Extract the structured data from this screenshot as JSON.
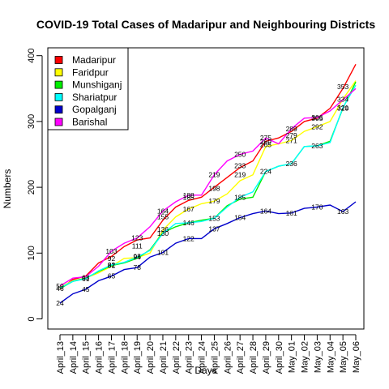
{
  "chart_data": {
    "type": "line",
    "title": "COVID-19 Total Cases of Madaripur and Neighbouring Districts",
    "xlabel": "Days",
    "ylabel": "Numbers",
    "ylim": [
      0,
      400
    ],
    "yticks": [
      0,
      100,
      200,
      300,
      400
    ],
    "grid": false,
    "legend_position": "top-left",
    "categories": [
      "April_13",
      "April_14",
      "April_15",
      "April_16",
      "April_17",
      "April_18",
      "April_19",
      "April_20",
      "April_21",
      "April_22",
      "April_23",
      "April_24",
      "April_25",
      "April_26",
      "April_27",
      "April_28",
      "April_29",
      "April_30",
      "May_01",
      "May_02",
      "May_03",
      "May_04",
      "May_05",
      "May_06"
    ],
    "series": [
      {
        "name": "Madaripur",
        "color": "#ff0000",
        "values": [
          45,
          60,
          65,
          85,
          95,
          110,
          120,
          123,
          150,
          170,
          180,
          185,
          200,
          215,
          230,
          240,
          270,
          275,
          285,
          300,
          305,
          320,
          350,
          387
        ]
      },
      {
        "name": "Faridpur",
        "color": "#ffff00",
        "values": [
          48,
          58,
          62,
          70,
          80,
          92,
          93,
          100,
          135,
          155,
          167,
          175,
          179,
          190,
          210,
          219,
          262,
          266,
          271,
          285,
          292,
          300,
          334,
          362
        ]
      },
      {
        "name": "Munshiganj",
        "color": "#00ee00",
        "values": [
          46,
          57,
          62,
          72,
          81,
          85,
          92,
          105,
          131,
          140,
          146,
          150,
          153,
          172,
          182,
          185,
          224,
          232,
          236,
          262,
          263,
          270,
          320,
          360
        ]
      },
      {
        "name": "Shariatpur",
        "color": "#00ffff",
        "values": [
          47,
          57,
          61,
          73,
          82,
          86,
          94,
          104,
          130,
          145,
          146,
          148,
          153,
          170,
          185,
          193,
          224,
          232,
          236,
          262,
          263,
          268,
          321,
          355
        ]
      },
      {
        "name": "Gopalganj",
        "color": "#0000cc",
        "values": [
          24,
          38,
          45,
          58,
          65,
          75,
          78,
          94,
          101,
          115,
          122,
          122,
          137,
          145,
          154,
          160,
          164,
          160,
          161,
          168,
          170,
          173,
          163,
          178
        ]
      },
      {
        "name": "Barishal",
        "color": "#ff00ff",
        "values": [
          50,
          62,
          64,
          80,
          103,
          115,
          123,
          140,
          164,
          178,
          188,
          188,
          219,
          240,
          250,
          255,
          275,
          266,
          289,
          305,
          306,
          316,
          333,
          350
        ]
      }
    ],
    "annotations": [
      {
        "x": "April_13",
        "y": 50,
        "text": "50"
      },
      {
        "x": "April_13",
        "y": 46,
        "text": "46"
      },
      {
        "x": "April_13",
        "y": 24,
        "text": "24"
      },
      {
        "x": "April_15",
        "y": 63,
        "text": "63"
      },
      {
        "x": "April_15",
        "y": 61,
        "text": "61"
      },
      {
        "x": "April_15",
        "y": 45,
        "text": "45"
      },
      {
        "x": "April_17",
        "y": 103,
        "text": "103"
      },
      {
        "x": "April_17",
        "y": 92,
        "text": "92"
      },
      {
        "x": "April_17",
        "y": 82,
        "text": "82"
      },
      {
        "x": "April_17",
        "y": 81,
        "text": "81"
      },
      {
        "x": "April_17",
        "y": 65,
        "text": "65"
      },
      {
        "x": "April_19",
        "y": 123,
        "text": "123"
      },
      {
        "x": "April_19",
        "y": 111,
        "text": "111"
      },
      {
        "x": "April_19",
        "y": 95,
        "text": "95"
      },
      {
        "x": "April_19",
        "y": 94,
        "text": "94"
      },
      {
        "x": "April_19",
        "y": 78,
        "text": "78"
      },
      {
        "x": "April_21",
        "y": 164,
        "text": "164"
      },
      {
        "x": "April_21",
        "y": 155,
        "text": "155"
      },
      {
        "x": "April_21",
        "y": 136,
        "text": "136"
      },
      {
        "x": "April_21",
        "y": 130,
        "text": "130"
      },
      {
        "x": "April_21",
        "y": 101,
        "text": "101"
      },
      {
        "x": "April_23",
        "y": 188,
        "text": "188"
      },
      {
        "x": "April_23",
        "y": 185,
        "text": "185"
      },
      {
        "x": "April_23",
        "y": 167,
        "text": "167"
      },
      {
        "x": "April_23",
        "y": 146,
        "text": "146"
      },
      {
        "x": "April_23",
        "y": 122,
        "text": "122"
      },
      {
        "x": "April_25",
        "y": 219,
        "text": "219"
      },
      {
        "x": "April_25",
        "y": 198,
        "text": "198"
      },
      {
        "x": "April_25",
        "y": 179,
        "text": "179"
      },
      {
        "x": "April_25",
        "y": 153,
        "text": "153"
      },
      {
        "x": "April_25",
        "y": 137,
        "text": "137"
      },
      {
        "x": "April_27",
        "y": 250,
        "text": "250"
      },
      {
        "x": "April_27",
        "y": 233,
        "text": "233"
      },
      {
        "x": "April_27",
        "y": 219,
        "text": "219"
      },
      {
        "x": "April_27",
        "y": 185,
        "text": "185"
      },
      {
        "x": "April_27",
        "y": 154,
        "text": "154"
      },
      {
        "x": "April_29",
        "y": 275,
        "text": "275"
      },
      {
        "x": "April_29",
        "y": 269,
        "text": "269"
      },
      {
        "x": "April_29",
        "y": 265,
        "text": "265"
      },
      {
        "x": "April_29",
        "y": 224,
        "text": "224"
      },
      {
        "x": "April_29",
        "y": 164,
        "text": "164"
      },
      {
        "x": "May_01",
        "y": 289,
        "text": "289"
      },
      {
        "x": "May_01",
        "y": 279,
        "text": "279"
      },
      {
        "x": "May_01",
        "y": 271,
        "text": "271"
      },
      {
        "x": "May_01",
        "y": 236,
        "text": "236"
      },
      {
        "x": "May_01",
        "y": 161,
        "text": "161"
      },
      {
        "x": "May_03",
        "y": 306,
        "text": "306"
      },
      {
        "x": "May_03",
        "y": 305,
        "text": "305"
      },
      {
        "x": "May_03",
        "y": 292,
        "text": "292"
      },
      {
        "x": "May_03",
        "y": 263,
        "text": "263"
      },
      {
        "x": "May_03",
        "y": 170,
        "text": "170"
      },
      {
        "x": "May_05",
        "y": 353,
        "text": "353"
      },
      {
        "x": "May_05",
        "y": 334,
        "text": "334"
      },
      {
        "x": "May_05",
        "y": 321,
        "text": "321"
      },
      {
        "x": "May_05",
        "y": 320,
        "text": "320"
      },
      {
        "x": "May_05",
        "y": 163,
        "text": "163"
      }
    ]
  }
}
